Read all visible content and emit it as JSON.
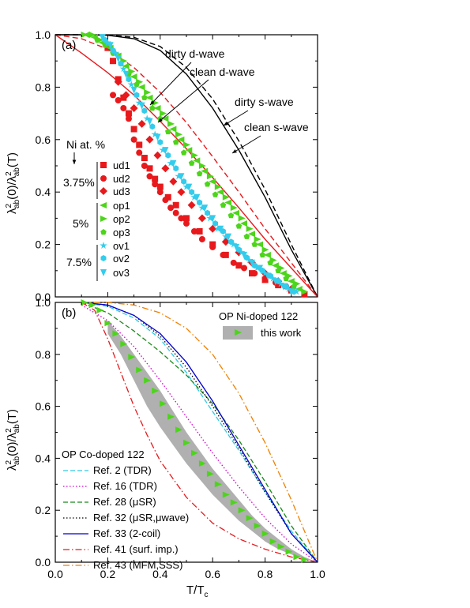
{
  "colors": {
    "black": "#000000",
    "red": "#e8191c",
    "green": "#4cd51a",
    "cyan": "#33ccec",
    "band": "#b0b0b0",
    "ref2": "#2ec8e8",
    "ref16": "#d000d0",
    "ref28": "#1a8a1a",
    "ref32": "#000000",
    "ref33": "#0000cc",
    "ref41": "#e8191c",
    "ref43": "#f08000"
  },
  "chart_data": [
    {
      "panel": "(a)",
      "type": "line",
      "xlabel": "T/T",
      "xlabel_sub": "c",
      "ylabel": "λ²ab(0)/λ²ab(T)",
      "xlim": [
        0,
        1
      ],
      "ylim": [
        0,
        1
      ],
      "xticks": [
        "0.0",
        "0.2",
        "0.4",
        "0.6",
        "0.8",
        "1.0"
      ],
      "yticks": [
        "0.0",
        "0.2",
        "0.4",
        "0.6",
        "0.8",
        "1.0"
      ],
      "annotations": {
        "dirty_d": "dirty d-wave",
        "clean_d": "clean d-wave",
        "dirty_s": "dirty s-wave",
        "clean_s": "clean s-wave",
        "ni_header": "Ni at. %",
        "group1": "3.75%",
        "group2": "5%",
        "group3": "7.5%"
      },
      "model_curves": [
        {
          "name": "clean s-wave",
          "style": "solid",
          "color": "#000000",
          "x": [
            0,
            0.1,
            0.2,
            0.3,
            0.4,
            0.5,
            0.6,
            0.7,
            0.8,
            0.9,
            0.95,
            1.0
          ],
          "y": [
            1.0,
            1.0,
            0.998,
            0.985,
            0.94,
            0.85,
            0.72,
            0.56,
            0.38,
            0.18,
            0.09,
            0.0
          ]
        },
        {
          "name": "dirty s-wave",
          "style": "dashed",
          "color": "#000000",
          "x": [
            0,
            0.1,
            0.2,
            0.3,
            0.4,
            0.5,
            0.6,
            0.7,
            0.8,
            0.9,
            0.95,
            1.0
          ],
          "y": [
            1.0,
            1.0,
            0.999,
            0.99,
            0.955,
            0.875,
            0.755,
            0.595,
            0.41,
            0.2,
            0.1,
            0.0
          ]
        },
        {
          "name": "clean d-wave",
          "style": "solid",
          "color": "#e8191c",
          "x": [
            0,
            0.1,
            0.2,
            0.3,
            0.4,
            0.5,
            0.6,
            0.7,
            0.8,
            0.9,
            1.0
          ],
          "y": [
            1.0,
            0.93,
            0.855,
            0.77,
            0.67,
            0.565,
            0.455,
            0.34,
            0.22,
            0.11,
            0.0
          ]
        },
        {
          "name": "dirty d-wave",
          "style": "dashed",
          "color": "#e8191c",
          "x": [
            0,
            0.1,
            0.2,
            0.3,
            0.4,
            0.5,
            0.6,
            0.7,
            0.8,
            0.9,
            1.0
          ],
          "y": [
            1.0,
            0.985,
            0.945,
            0.875,
            0.78,
            0.665,
            0.535,
            0.4,
            0.26,
            0.13,
            0.0
          ]
        }
      ],
      "series": [
        {
          "name": "ud1",
          "marker": "square",
          "color": "#e8191c",
          "x": [
            0.2,
            0.22,
            0.24,
            0.26,
            0.28,
            0.3,
            0.32,
            0.34,
            0.36,
            0.38,
            0.4,
            0.43,
            0.46,
            0.5,
            0.55,
            0.6,
            0.65,
            0.7,
            0.75,
            0.8,
            0.85,
            0.9,
            0.95
          ],
          "y": [
            0.95,
            0.9,
            0.83,
            0.76,
            0.7,
            0.64,
            0.58,
            0.53,
            0.49,
            0.45,
            0.42,
            0.38,
            0.35,
            0.3,
            0.25,
            0.2,
            0.16,
            0.12,
            0.09,
            0.065,
            0.045,
            0.025,
            0.01
          ]
        },
        {
          "name": "ud2",
          "marker": "circle",
          "color": "#e8191c",
          "x": [
            0.22,
            0.24,
            0.26,
            0.28,
            0.3,
            0.32,
            0.34,
            0.36,
            0.38,
            0.4,
            0.42,
            0.44,
            0.46,
            0.48,
            0.5,
            0.53,
            0.56,
            0.6,
            0.64,
            0.68,
            0.72,
            0.76,
            0.8,
            0.84,
            0.88
          ],
          "y": [
            0.77,
            0.75,
            0.72,
            0.68,
            0.6,
            0.55,
            0.5,
            0.46,
            0.43,
            0.4,
            0.37,
            0.34,
            0.32,
            0.3,
            0.28,
            0.25,
            0.22,
            0.19,
            0.16,
            0.13,
            0.11,
            0.09,
            0.07,
            0.055,
            0.04
          ]
        },
        {
          "name": "ud3",
          "marker": "diamond",
          "color": "#e8191c",
          "x": [
            0.24,
            0.27,
            0.3,
            0.33,
            0.36,
            0.39,
            0.42,
            0.45,
            0.48,
            0.52,
            0.56,
            0.6,
            0.65,
            0.7,
            0.75,
            0.8,
            0.85,
            0.9
          ],
          "y": [
            0.82,
            0.77,
            0.72,
            0.66,
            0.6,
            0.54,
            0.49,
            0.44,
            0.4,
            0.35,
            0.3,
            0.26,
            0.21,
            0.17,
            0.13,
            0.09,
            0.06,
            0.03
          ]
        },
        {
          "name": "op1",
          "marker": "triangle-left",
          "color": "#4cd51a",
          "x": [
            0.12,
            0.15,
            0.18,
            0.21,
            0.24,
            0.27,
            0.3,
            0.33,
            0.36,
            0.39,
            0.42,
            0.45,
            0.48,
            0.51,
            0.54,
            0.57,
            0.6,
            0.63,
            0.66,
            0.69,
            0.72,
            0.75,
            0.78,
            0.81,
            0.84,
            0.87,
            0.9,
            0.93
          ],
          "y": [
            1.0,
            0.99,
            0.97,
            0.95,
            0.92,
            0.88,
            0.84,
            0.8,
            0.76,
            0.72,
            0.68,
            0.64,
            0.6,
            0.56,
            0.52,
            0.48,
            0.44,
            0.4,
            0.36,
            0.32,
            0.28,
            0.24,
            0.2,
            0.16,
            0.12,
            0.09,
            0.06,
            0.03
          ]
        },
        {
          "name": "op2",
          "marker": "triangle-right",
          "color": "#4cd51a",
          "x": [
            0.11,
            0.14,
            0.17,
            0.2,
            0.23,
            0.26,
            0.29,
            0.32,
            0.35,
            0.38,
            0.41,
            0.44,
            0.47,
            0.5,
            0.53,
            0.56,
            0.59,
            0.62,
            0.65,
            0.68,
            0.71,
            0.74,
            0.77,
            0.8,
            0.83,
            0.86,
            0.89,
            0.92,
            0.95
          ],
          "y": [
            1.0,
            1.0,
            0.98,
            0.96,
            0.93,
            0.9,
            0.86,
            0.82,
            0.78,
            0.74,
            0.7,
            0.66,
            0.62,
            0.58,
            0.54,
            0.5,
            0.46,
            0.42,
            0.38,
            0.34,
            0.3,
            0.26,
            0.22,
            0.18,
            0.14,
            0.11,
            0.08,
            0.05,
            0.02
          ]
        },
        {
          "name": "op3",
          "marker": "pentagon",
          "color": "#4cd51a",
          "x": [
            0.13,
            0.16,
            0.19,
            0.22,
            0.25,
            0.28,
            0.31,
            0.34,
            0.37,
            0.4,
            0.43,
            0.46,
            0.49,
            0.52,
            0.55,
            0.58,
            0.61,
            0.64,
            0.67,
            0.7,
            0.73,
            0.76,
            0.79,
            0.82,
            0.85,
            0.88,
            0.91
          ],
          "y": [
            1.0,
            0.98,
            0.96,
            0.93,
            0.89,
            0.85,
            0.81,
            0.76,
            0.72,
            0.68,
            0.63,
            0.59,
            0.55,
            0.51,
            0.47,
            0.43,
            0.39,
            0.35,
            0.31,
            0.27,
            0.23,
            0.2,
            0.16,
            0.13,
            0.1,
            0.07,
            0.04
          ]
        },
        {
          "name": "ov1",
          "marker": "star",
          "color": "#33ccec",
          "x": [
            0.2,
            0.23,
            0.26,
            0.29,
            0.32,
            0.35,
            0.38,
            0.41,
            0.44,
            0.47,
            0.5,
            0.53,
            0.56,
            0.59,
            0.62,
            0.65,
            0.68,
            0.71,
            0.74,
            0.77,
            0.8,
            0.83,
            0.86,
            0.89,
            0.92
          ],
          "y": [
            0.97,
            0.93,
            0.87,
            0.81,
            0.74,
            0.68,
            0.62,
            0.56,
            0.51,
            0.46,
            0.42,
            0.38,
            0.34,
            0.3,
            0.26,
            0.23,
            0.2,
            0.17,
            0.14,
            0.11,
            0.09,
            0.07,
            0.05,
            0.03,
            0.02
          ]
        },
        {
          "name": "ov2",
          "marker": "hexagon",
          "color": "#33ccec",
          "x": [
            0.19,
            0.22,
            0.25,
            0.28,
            0.31,
            0.34,
            0.37,
            0.4,
            0.43,
            0.46,
            0.49,
            0.52,
            0.55,
            0.58,
            0.61,
            0.64,
            0.67,
            0.7,
            0.73,
            0.76,
            0.79,
            0.82,
            0.85,
            0.88,
            0.91
          ],
          "y": [
            0.98,
            0.94,
            0.89,
            0.83,
            0.77,
            0.71,
            0.65,
            0.59,
            0.54,
            0.49,
            0.44,
            0.4,
            0.36,
            0.32,
            0.28,
            0.25,
            0.21,
            0.18,
            0.15,
            0.12,
            0.1,
            0.08,
            0.06,
            0.04,
            0.02
          ]
        },
        {
          "name": "ov3",
          "marker": "triangle-down",
          "color": "#33ccec",
          "x": [
            0.18,
            0.21,
            0.24,
            0.27,
            0.3,
            0.33,
            0.36,
            0.39,
            0.42,
            0.45,
            0.48,
            0.51,
            0.54,
            0.57,
            0.6,
            0.63,
            0.66,
            0.69,
            0.72,
            0.75,
            0.78,
            0.81,
            0.84,
            0.87,
            0.9
          ],
          "y": [
            0.99,
            0.96,
            0.91,
            0.85,
            0.79,
            0.73,
            0.67,
            0.61,
            0.56,
            0.51,
            0.46,
            0.42,
            0.38,
            0.34,
            0.3,
            0.26,
            0.23,
            0.19,
            0.16,
            0.13,
            0.11,
            0.08,
            0.06,
            0.04,
            0.02
          ]
        }
      ],
      "legend_position": "center-left"
    },
    {
      "panel": "(b)",
      "type": "line",
      "xlabel": "T/T",
      "xlabel_sub": "c",
      "ylabel": "λ²ab(0)/λ²ab(T)",
      "xlim": [
        0,
        1
      ],
      "ylim": [
        0,
        1
      ],
      "xticks": [
        "0.0",
        "0.2",
        "0.4",
        "0.6",
        "0.8",
        "1.0"
      ],
      "yticks": [
        "0.0",
        "0.2",
        "0.4",
        "0.6",
        "0.8",
        "1.0"
      ],
      "legend_top_title": "OP Ni-doped 122",
      "legend_top_entry": "this work",
      "legend_bottom_title": "OP Co-doped 122",
      "band": {
        "x": [
          0.2,
          0.25,
          0.3,
          0.35,
          0.4,
          0.45,
          0.5,
          0.55,
          0.6,
          0.65,
          0.7,
          0.75,
          0.8,
          0.85,
          0.9,
          0.95,
          1.0
        ],
        "lo": [
          0.88,
          0.8,
          0.7,
          0.6,
          0.52,
          0.45,
          0.38,
          0.32,
          0.26,
          0.21,
          0.16,
          0.12,
          0.08,
          0.05,
          0.03,
          0.01,
          0.0
        ],
        "hi": [
          0.93,
          0.87,
          0.8,
          0.73,
          0.66,
          0.58,
          0.5,
          0.43,
          0.36,
          0.3,
          0.24,
          0.18,
          0.13,
          0.09,
          0.05,
          0.02,
          0.0
        ]
      },
      "series": [
        {
          "name": "this work",
          "marker": "triangle-right",
          "color": "#4cd51a",
          "x": [
            0.11,
            0.14,
            0.17,
            0.2,
            0.23,
            0.26,
            0.29,
            0.32,
            0.35,
            0.38,
            0.41,
            0.44,
            0.47,
            0.5,
            0.53,
            0.56,
            0.59,
            0.62,
            0.65,
            0.68,
            0.71,
            0.74,
            0.77,
            0.8,
            0.83,
            0.86,
            0.89,
            0.92,
            0.95
          ],
          "y": [
            1.0,
            0.99,
            0.97,
            0.92,
            0.88,
            0.84,
            0.79,
            0.74,
            0.7,
            0.66,
            0.61,
            0.56,
            0.51,
            0.46,
            0.42,
            0.38,
            0.34,
            0.3,
            0.26,
            0.23,
            0.2,
            0.17,
            0.14,
            0.11,
            0.08,
            0.06,
            0.04,
            0.02,
            0.01
          ]
        },
        {
          "name": "Ref. 2 (TDR)",
          "style": "dash",
          "color": "#2ec8e8",
          "x": [
            0.1,
            0.2,
            0.3,
            0.4,
            0.5,
            0.6,
            0.7,
            0.8,
            0.9,
            1.0
          ],
          "y": [
            1.0,
            0.985,
            0.94,
            0.86,
            0.73,
            0.58,
            0.43,
            0.27,
            0.12,
            0.0
          ]
        },
        {
          "name": "Ref. 16 (TDR)",
          "style": "dot",
          "color": "#d000d0",
          "x": [
            0.1,
            0.2,
            0.3,
            0.4,
            0.5,
            0.6,
            0.7,
            0.8,
            0.9,
            1.0
          ],
          "y": [
            0.99,
            0.93,
            0.83,
            0.7,
            0.56,
            0.42,
            0.29,
            0.17,
            0.07,
            0.0
          ]
        },
        {
          "name": "Ref. 28 (μSR)",
          "style": "dash",
          "color": "#1a8a1a",
          "x": [
            0.1,
            0.2,
            0.3,
            0.4,
            0.5,
            0.6,
            0.7,
            0.8,
            0.9,
            1.0
          ],
          "y": [
            1.0,
            0.96,
            0.89,
            0.81,
            0.72,
            0.61,
            0.47,
            0.31,
            0.14,
            0.0
          ]
        },
        {
          "name": "Ref. 32 (μSR,μwave)",
          "style": "dot",
          "color": "#000000",
          "x": [
            0.1,
            0.2,
            0.3,
            0.4,
            0.5,
            0.6,
            0.7,
            0.8,
            0.9,
            1.0
          ],
          "y": [
            1.0,
            0.99,
            0.95,
            0.87,
            0.75,
            0.6,
            0.44,
            0.27,
            0.11,
            0.0
          ]
        },
        {
          "name": "Ref. 33 (2-coil)",
          "style": "solid",
          "color": "#0000cc",
          "x": [
            0.1,
            0.2,
            0.3,
            0.4,
            0.5,
            0.6,
            0.7,
            0.8,
            0.9,
            1.0
          ],
          "y": [
            1.0,
            0.99,
            0.95,
            0.88,
            0.77,
            0.62,
            0.45,
            0.28,
            0.11,
            0.0
          ]
        },
        {
          "name": "Ref. 41 (surf. imp.)",
          "style": "dashdot",
          "color": "#e8191c",
          "x": [
            0.1,
            0.15,
            0.2,
            0.25,
            0.3,
            0.35,
            0.4,
            0.5,
            0.6,
            0.7,
            0.8,
            0.9,
            1.0
          ],
          "y": [
            1.0,
            0.97,
            0.86,
            0.73,
            0.6,
            0.49,
            0.39,
            0.25,
            0.15,
            0.09,
            0.05,
            0.02,
            0.0
          ]
        },
        {
          "name": "Ref. 43 (MFM,SSS)",
          "style": "dashdot",
          "color": "#f08000",
          "x": [
            0.1,
            0.2,
            0.3,
            0.4,
            0.5,
            0.6,
            0.7,
            0.8,
            0.9,
            0.95,
            1.0
          ],
          "y": [
            1.0,
            1.0,
            0.99,
            0.96,
            0.9,
            0.8,
            0.65,
            0.46,
            0.24,
            0.12,
            0.0
          ]
        }
      ]
    }
  ]
}
